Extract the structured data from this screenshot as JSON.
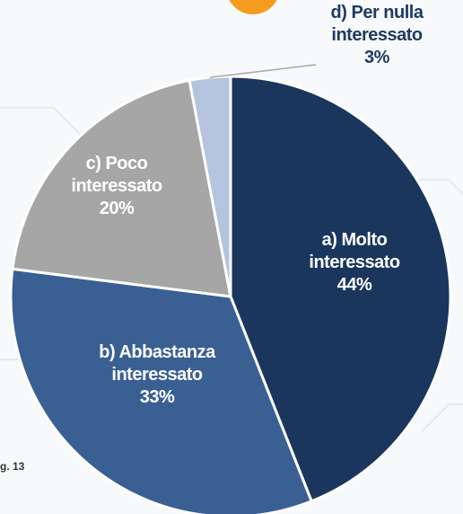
{
  "chart_data": {
    "type": "pie",
    "categories": [
      "a) Molto interessato",
      "b) Abbastanza interessato",
      "c) Poco interessato",
      "d) Per nulla interessato"
    ],
    "values": [
      44,
      33,
      20,
      3
    ],
    "value_labels": [
      "44%",
      "33%",
      "20%",
      "3%"
    ],
    "colors": [
      "#1b365d",
      "#3a5f93",
      "#a6a6a6",
      "#b4c4de"
    ],
    "label_colors": [
      "#ffffff",
      "#ffffff",
      "#ffffff",
      "#1f3b63"
    ],
    "figure_label": "g. 13"
  }
}
